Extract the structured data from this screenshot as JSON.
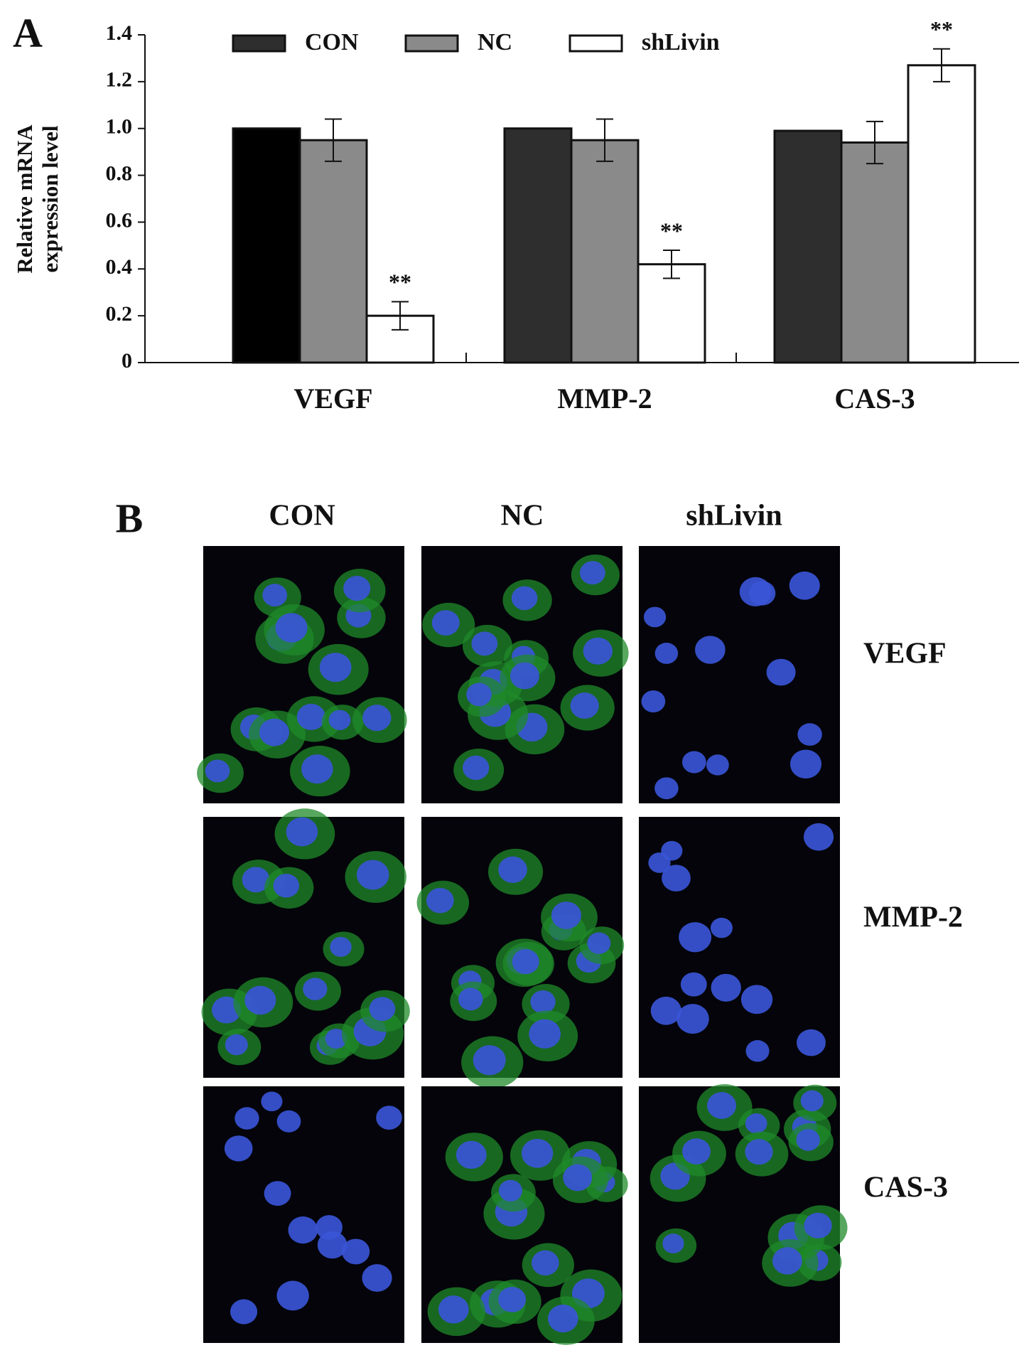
{
  "chart_data": {
    "type": "bar",
    "panel_label": "A",
    "ylabel": [
      "Relative mRNA",
      "expression level"
    ],
    "categories": [
      "VEGF",
      "MMP-2",
      "CAS-3"
    ],
    "series": [
      {
        "name": "CON",
        "color": "#2e2e2e",
        "colors": [
          "#000000",
          "#2e2e2e",
          "#2e2e2e"
        ],
        "values": [
          1.0,
          1.0,
          0.99
        ]
      },
      {
        "name": "NC",
        "color": "#8a8a8a",
        "values": [
          0.95,
          0.95,
          0.94
        ],
        "errors": [
          0.09,
          0.09,
          0.09
        ]
      },
      {
        "name": "shLivin",
        "color": "#ffffff",
        "values": [
          0.2,
          0.42,
          1.27
        ],
        "errors": [
          0.06,
          0.06,
          0.07
        ],
        "significance": [
          "**",
          "**",
          "**"
        ]
      }
    ],
    "ylim": [
      0,
      1.4
    ],
    "yticks": [
      0,
      0.2,
      0.4,
      0.6,
      0.8,
      {
        "value": 1,
        "label": "1.0"
      },
      1.2,
      1.4
    ],
    "legend": "top"
  },
  "panel_b": {
    "label": "B",
    "columns": [
      "CON",
      "NC",
      "shLivin"
    ],
    "rows": [
      "VEGF",
      "MMP-2",
      "CAS-3"
    ]
  }
}
